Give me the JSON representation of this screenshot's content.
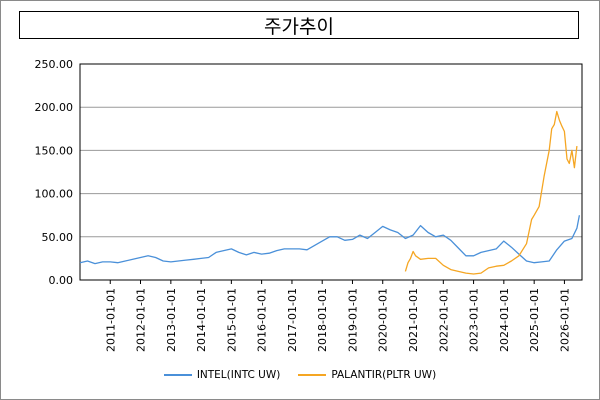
{
  "chart_data": {
    "type": "line",
    "title": "주가추이",
    "ylim": [
      0,
      250
    ],
    "yticks": [
      "0.00",
      "50.00",
      "100.00",
      "150.00",
      "200.00",
      "250.00"
    ],
    "xlim": [
      "2010-01-01",
      "2026-08-01"
    ],
    "xticks": [
      "2011-01-01",
      "2012-01-01",
      "2013-01-01",
      "2014-01-01",
      "2015-01-01",
      "2016-01-01",
      "2017-01-01",
      "2018-01-01",
      "2019-01-01",
      "2020-01-01",
      "2021-01-01",
      "2022-01-01",
      "2023-01-01",
      "2024-01-01",
      "2025-01-01",
      "2026-01-01"
    ],
    "grid": "horizontal",
    "legend_position": "bottom",
    "series": [
      {
        "name": "INTEL(INTC UW)",
        "color": "#4a90d9",
        "points": [
          [
            "2010-01-01",
            20
          ],
          [
            "2010-04-01",
            22
          ],
          [
            "2010-07-01",
            19
          ],
          [
            "2010-10-01",
            21
          ],
          [
            "2011-01-01",
            21
          ],
          [
            "2011-04-01",
            20
          ],
          [
            "2011-07-01",
            22
          ],
          [
            "2011-10-01",
            24
          ],
          [
            "2012-01-01",
            26
          ],
          [
            "2012-04-01",
            28
          ],
          [
            "2012-07-01",
            26
          ],
          [
            "2012-10-01",
            22
          ],
          [
            "2013-01-01",
            21
          ],
          [
            "2013-04-01",
            22
          ],
          [
            "2013-07-01",
            23
          ],
          [
            "2013-10-01",
            24
          ],
          [
            "2014-01-01",
            25
          ],
          [
            "2014-04-01",
            26
          ],
          [
            "2014-07-01",
            32
          ],
          [
            "2014-10-01",
            34
          ],
          [
            "2015-01-01",
            36
          ],
          [
            "2015-04-01",
            32
          ],
          [
            "2015-07-01",
            29
          ],
          [
            "2015-10-01",
            32
          ],
          [
            "2016-01-01",
            30
          ],
          [
            "2016-04-01",
            31
          ],
          [
            "2016-07-01",
            34
          ],
          [
            "2016-10-01",
            36
          ],
          [
            "2017-01-01",
            36
          ],
          [
            "2017-04-01",
            36
          ],
          [
            "2017-07-01",
            35
          ],
          [
            "2017-10-01",
            40
          ],
          [
            "2018-01-01",
            45
          ],
          [
            "2018-04-01",
            50
          ],
          [
            "2018-07-01",
            50
          ],
          [
            "2018-10-01",
            46
          ],
          [
            "2019-01-01",
            47
          ],
          [
            "2019-04-01",
            52
          ],
          [
            "2019-07-01",
            48
          ],
          [
            "2019-10-01",
            55
          ],
          [
            "2020-01-01",
            62
          ],
          [
            "2020-04-01",
            58
          ],
          [
            "2020-07-01",
            55
          ],
          [
            "2020-10-01",
            48
          ],
          [
            "2021-01-01",
            52
          ],
          [
            "2021-04-01",
            63
          ],
          [
            "2021-07-01",
            55
          ],
          [
            "2021-10-01",
            50
          ],
          [
            "2022-01-01",
            52
          ],
          [
            "2022-04-01",
            46
          ],
          [
            "2022-07-01",
            37
          ],
          [
            "2022-10-01",
            28
          ],
          [
            "2023-01-01",
            28
          ],
          [
            "2023-04-01",
            32
          ],
          [
            "2023-07-01",
            34
          ],
          [
            "2023-10-01",
            36
          ],
          [
            "2024-01-01",
            45
          ],
          [
            "2024-04-01",
            38
          ],
          [
            "2024-07-01",
            30
          ],
          [
            "2024-10-01",
            22
          ],
          [
            "2025-01-01",
            20
          ],
          [
            "2025-04-01",
            21
          ],
          [
            "2025-07-01",
            22
          ],
          [
            "2025-10-01",
            35
          ],
          [
            "2026-01-01",
            45
          ],
          [
            "2026-04-01",
            48
          ],
          [
            "2026-06-01",
            60
          ],
          [
            "2026-07-01",
            75
          ]
        ]
      },
      {
        "name": "PALANTIR(PLTR UW)",
        "color": "#f5a623",
        "points": [
          [
            "2020-10-01",
            10
          ],
          [
            "2020-11-01",
            20
          ],
          [
            "2020-12-01",
            25
          ],
          [
            "2021-01-01",
            33
          ],
          [
            "2021-02-01",
            28
          ],
          [
            "2021-04-01",
            24
          ],
          [
            "2021-07-01",
            25
          ],
          [
            "2021-10-01",
            25
          ],
          [
            "2022-01-01",
            17
          ],
          [
            "2022-04-01",
            12
          ],
          [
            "2022-07-01",
            10
          ],
          [
            "2022-10-01",
            8
          ],
          [
            "2023-01-01",
            7
          ],
          [
            "2023-04-01",
            8
          ],
          [
            "2023-07-01",
            14
          ],
          [
            "2023-10-01",
            16
          ],
          [
            "2024-01-01",
            17
          ],
          [
            "2024-04-01",
            22
          ],
          [
            "2024-07-01",
            28
          ],
          [
            "2024-10-01",
            42
          ],
          [
            "2024-12-01",
            70
          ],
          [
            "2025-01-01",
            75
          ],
          [
            "2025-03-01",
            85
          ],
          [
            "2025-05-01",
            120
          ],
          [
            "2025-07-01",
            150
          ],
          [
            "2025-08-01",
            175
          ],
          [
            "2025-09-01",
            180
          ],
          [
            "2025-10-01",
            195
          ],
          [
            "2025-11-01",
            185
          ],
          [
            "2025-12-01",
            178
          ],
          [
            "2026-01-01",
            172
          ],
          [
            "2026-02-01",
            140
          ],
          [
            "2026-03-01",
            135
          ],
          [
            "2026-04-01",
            150
          ],
          [
            "2026-05-01",
            130
          ],
          [
            "2026-06-01",
            155
          ]
        ]
      }
    ]
  }
}
